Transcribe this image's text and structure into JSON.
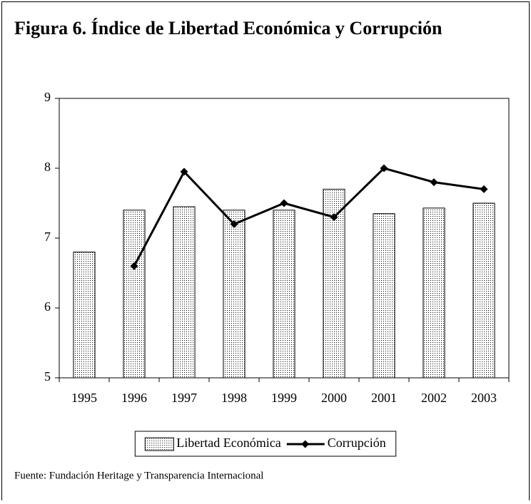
{
  "chart_data": {
    "type": "bar",
    "title": "Figura 6. Índice de Libertad Económica y Corrupción",
    "source": "Fuente: Fundación Heritage y Transparencia Internacional",
    "categories": [
      "1995",
      "1996",
      "1997",
      "1998",
      "1999",
      "2000",
      "2001",
      "2002",
      "2003"
    ],
    "series": [
      {
        "name": "Libertad Económica",
        "type": "bar",
        "color": "#000000",
        "values": [
          6.8,
          7.4,
          7.45,
          7.4,
          7.4,
          7.7,
          7.35,
          7.43,
          7.5
        ]
      },
      {
        "name": "Corrupción",
        "type": "line",
        "color": "#000000",
        "values": [
          null,
          6.6,
          7.95,
          7.2,
          7.5,
          7.3,
          8.0,
          7.8,
          7.7
        ]
      }
    ],
    "ylim": [
      5,
      9
    ],
    "yticks": [
      5,
      6,
      7,
      8,
      9
    ],
    "legend": "bottom"
  }
}
